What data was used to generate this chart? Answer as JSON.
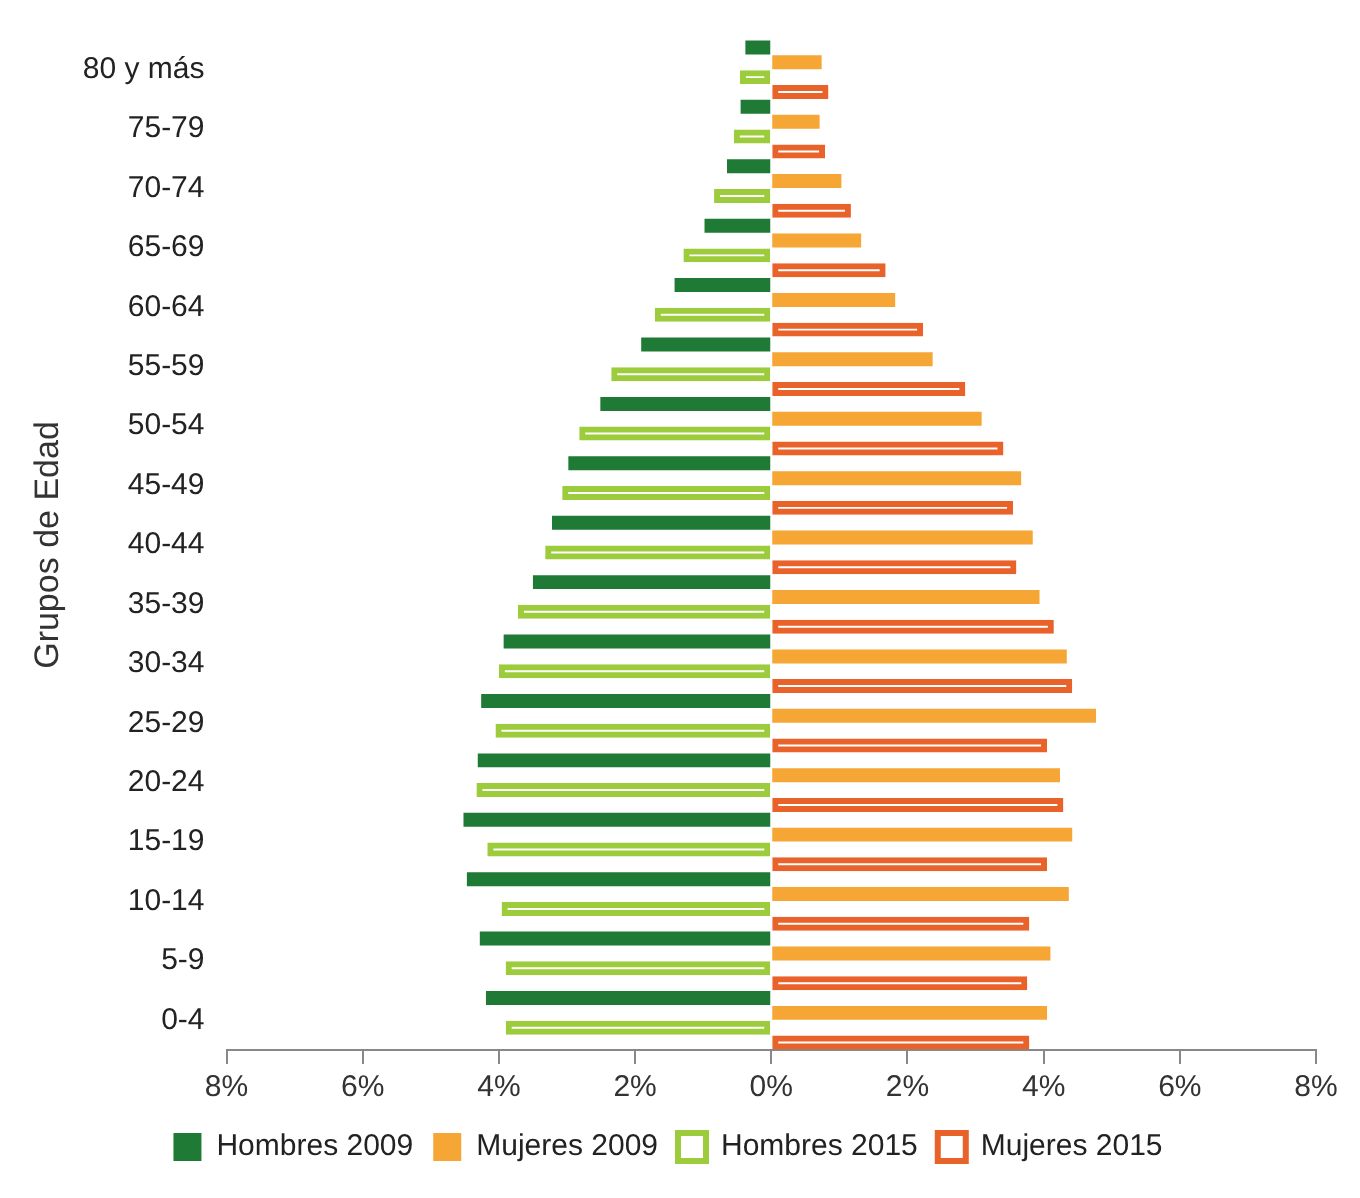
{
  "chart_data": {
    "type": "bar",
    "orientation": "horizontal",
    "ylabel": "Grupos de Edad",
    "categories": [
      "80 y más",
      "75-79",
      "70-74",
      "65-69",
      "60-64",
      "55-59",
      "50-54",
      "45-49",
      "40-44",
      "35-39",
      "30-34",
      "25-29",
      "20-24",
      "15-19",
      "10-14",
      "5-9",
      "0-4"
    ],
    "series": [
      {
        "name": "Hombres 2009",
        "color": "#1e7a34",
        "values": [
          -0.38,
          -0.45,
          -0.65,
          -0.98,
          -1.42,
          -1.91,
          -2.51,
          -2.98,
          -3.22,
          -3.5,
          -3.93,
          -4.26,
          -4.31,
          -4.52,
          -4.47,
          -4.28,
          -4.19
        ]
      },
      {
        "name": "Mujeres 2009",
        "color": "#f6a634",
        "values": [
          0.74,
          0.71,
          1.03,
          1.32,
          1.82,
          2.37,
          3.09,
          3.67,
          3.84,
          3.94,
          4.34,
          4.77,
          4.24,
          4.42,
          4.37,
          4.1,
          4.05
        ]
      },
      {
        "name": "Hombres 2015",
        "color": "#9ccc3c",
        "values": [
          -0.46,
          -0.55,
          -0.84,
          -1.29,
          -1.71,
          -2.35,
          -2.82,
          -3.07,
          -3.32,
          -3.72,
          -4.0,
          -4.05,
          -4.33,
          -4.17,
          -3.96,
          -3.9,
          -3.9
        ]
      },
      {
        "name": "Mujeres 2015",
        "color": "#e8622a",
        "values": [
          0.84,
          0.79,
          1.17,
          1.68,
          2.23,
          2.85,
          3.41,
          3.55,
          3.6,
          4.15,
          4.42,
          4.05,
          4.29,
          4.05,
          3.79,
          3.76,
          3.79
        ]
      }
    ],
    "xlim": [
      -8,
      8
    ],
    "xticks": [
      {
        "value": -8,
        "label": "8%"
      },
      {
        "value": -6,
        "label": "6%"
      },
      {
        "value": -4,
        "label": "4%"
      },
      {
        "value": -2,
        "label": "2%"
      },
      {
        "value": 0,
        "label": "0%"
      },
      {
        "value": 2,
        "label": "2%"
      },
      {
        "value": 4,
        "label": "4%"
      },
      {
        "value": 6,
        "label": "6%"
      },
      {
        "value": 8,
        "label": "8%"
      }
    ],
    "legend": "bottom"
  }
}
